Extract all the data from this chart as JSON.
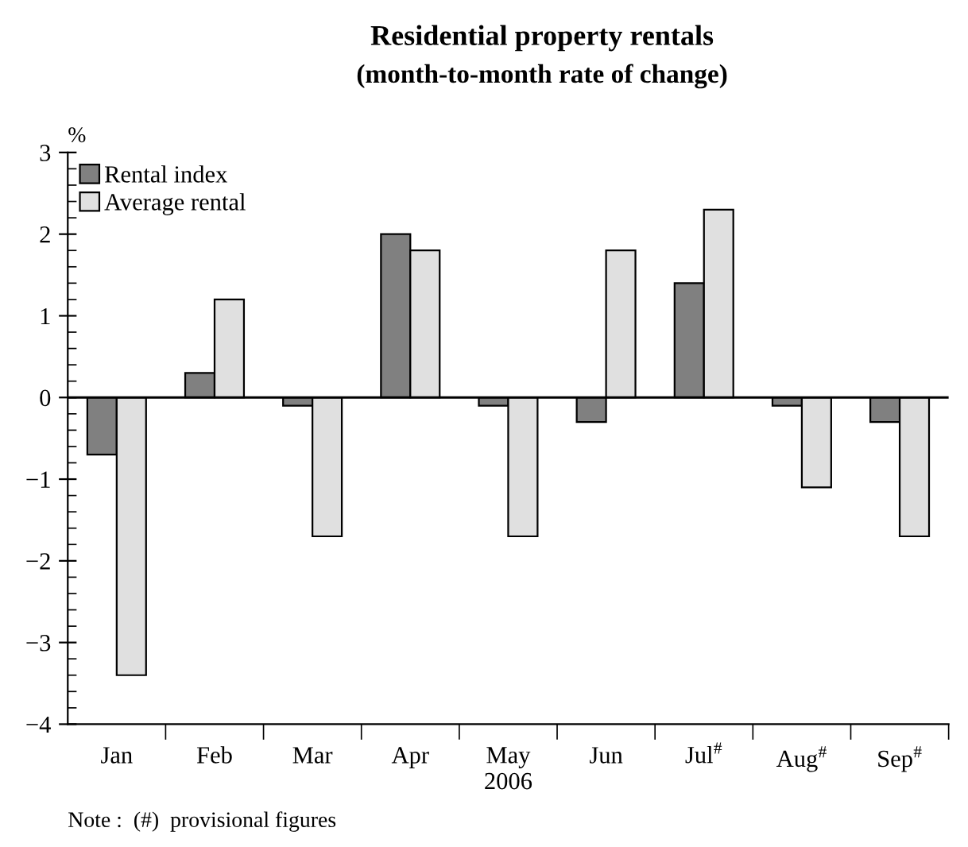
{
  "chart_data": {
    "type": "bar",
    "title": "Residential property rentals",
    "subtitle": "(month-to-month rate of change)",
    "xlabel": "2006",
    "ylabel": "%",
    "categories": [
      "Jan",
      "Feb",
      "Mar",
      "Apr",
      "May",
      "Jun",
      "Jul$^{#}$",
      "Aug$^{#}$",
      "Sep$^{#}$"
    ],
    "series": [
      {
        "name": "Rental index",
        "color": "#808080",
        "values": [
          -0.7,
          0.3,
          -0.1,
          2.0,
          -0.1,
          -0.3,
          1.4,
          -0.1,
          -0.3
        ]
      },
      {
        "name": "Average rental",
        "color": "#e0e0e0",
        "values": [
          -3.4,
          1.2,
          -1.7,
          1.8,
          -1.7,
          1.8,
          2.3,
          -1.1,
          -1.7
        ]
      }
    ],
    "ylim": [
      -4,
      3
    ],
    "yticks": [
      -4,
      -3,
      -2,
      -1,
      0,
      1,
      2,
      3
    ],
    "ref_lines": [
      {
        "axis": "y",
        "value": 0,
        "color": "#000000"
      }
    ],
    "legend": "top left",
    "grid": false,
    "annotations": [
      "Note :  (#)  provisional figures"
    ]
  }
}
